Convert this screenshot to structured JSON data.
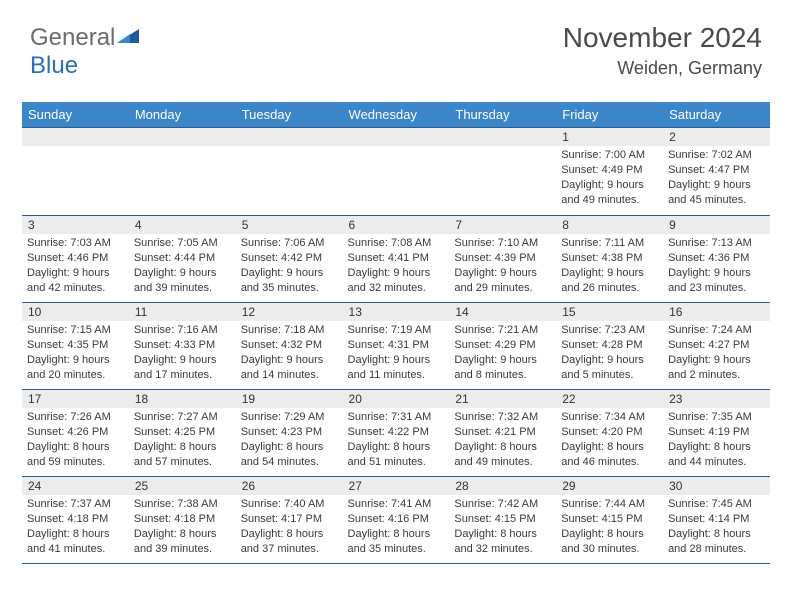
{
  "logo": {
    "part1": "General",
    "part2": "Blue"
  },
  "title": "November 2024",
  "location": "Weiden, Germany",
  "colors": {
    "header_bg": "#3a86c8",
    "header_text": "#ffffff",
    "border": "#2c5b8f",
    "daynum_bg": "#ececec",
    "logo_gray": "#6b6b6b",
    "logo_blue": "#2c6fb5",
    "text": "#3a3a3a"
  },
  "day_headers": [
    "Sunday",
    "Monday",
    "Tuesday",
    "Wednesday",
    "Thursday",
    "Friday",
    "Saturday"
  ],
  "weeks": [
    [
      {
        "num": "",
        "sunrise": "",
        "sunset": "",
        "daylight": ""
      },
      {
        "num": "",
        "sunrise": "",
        "sunset": "",
        "daylight": ""
      },
      {
        "num": "",
        "sunrise": "",
        "sunset": "",
        "daylight": ""
      },
      {
        "num": "",
        "sunrise": "",
        "sunset": "",
        "daylight": ""
      },
      {
        "num": "",
        "sunrise": "",
        "sunset": "",
        "daylight": ""
      },
      {
        "num": "1",
        "sunrise": "Sunrise: 7:00 AM",
        "sunset": "Sunset: 4:49 PM",
        "daylight": "Daylight: 9 hours and 49 minutes."
      },
      {
        "num": "2",
        "sunrise": "Sunrise: 7:02 AM",
        "sunset": "Sunset: 4:47 PM",
        "daylight": "Daylight: 9 hours and 45 minutes."
      }
    ],
    [
      {
        "num": "3",
        "sunrise": "Sunrise: 7:03 AM",
        "sunset": "Sunset: 4:46 PM",
        "daylight": "Daylight: 9 hours and 42 minutes."
      },
      {
        "num": "4",
        "sunrise": "Sunrise: 7:05 AM",
        "sunset": "Sunset: 4:44 PM",
        "daylight": "Daylight: 9 hours and 39 minutes."
      },
      {
        "num": "5",
        "sunrise": "Sunrise: 7:06 AM",
        "sunset": "Sunset: 4:42 PM",
        "daylight": "Daylight: 9 hours and 35 minutes."
      },
      {
        "num": "6",
        "sunrise": "Sunrise: 7:08 AM",
        "sunset": "Sunset: 4:41 PM",
        "daylight": "Daylight: 9 hours and 32 minutes."
      },
      {
        "num": "7",
        "sunrise": "Sunrise: 7:10 AM",
        "sunset": "Sunset: 4:39 PM",
        "daylight": "Daylight: 9 hours and 29 minutes."
      },
      {
        "num": "8",
        "sunrise": "Sunrise: 7:11 AM",
        "sunset": "Sunset: 4:38 PM",
        "daylight": "Daylight: 9 hours and 26 minutes."
      },
      {
        "num": "9",
        "sunrise": "Sunrise: 7:13 AM",
        "sunset": "Sunset: 4:36 PM",
        "daylight": "Daylight: 9 hours and 23 minutes."
      }
    ],
    [
      {
        "num": "10",
        "sunrise": "Sunrise: 7:15 AM",
        "sunset": "Sunset: 4:35 PM",
        "daylight": "Daylight: 9 hours and 20 minutes."
      },
      {
        "num": "11",
        "sunrise": "Sunrise: 7:16 AM",
        "sunset": "Sunset: 4:33 PM",
        "daylight": "Daylight: 9 hours and 17 minutes."
      },
      {
        "num": "12",
        "sunrise": "Sunrise: 7:18 AM",
        "sunset": "Sunset: 4:32 PM",
        "daylight": "Daylight: 9 hours and 14 minutes."
      },
      {
        "num": "13",
        "sunrise": "Sunrise: 7:19 AM",
        "sunset": "Sunset: 4:31 PM",
        "daylight": "Daylight: 9 hours and 11 minutes."
      },
      {
        "num": "14",
        "sunrise": "Sunrise: 7:21 AM",
        "sunset": "Sunset: 4:29 PM",
        "daylight": "Daylight: 9 hours and 8 minutes."
      },
      {
        "num": "15",
        "sunrise": "Sunrise: 7:23 AM",
        "sunset": "Sunset: 4:28 PM",
        "daylight": "Daylight: 9 hours and 5 minutes."
      },
      {
        "num": "16",
        "sunrise": "Sunrise: 7:24 AM",
        "sunset": "Sunset: 4:27 PM",
        "daylight": "Daylight: 9 hours and 2 minutes."
      }
    ],
    [
      {
        "num": "17",
        "sunrise": "Sunrise: 7:26 AM",
        "sunset": "Sunset: 4:26 PM",
        "daylight": "Daylight: 8 hours and 59 minutes."
      },
      {
        "num": "18",
        "sunrise": "Sunrise: 7:27 AM",
        "sunset": "Sunset: 4:25 PM",
        "daylight": "Daylight: 8 hours and 57 minutes."
      },
      {
        "num": "19",
        "sunrise": "Sunrise: 7:29 AM",
        "sunset": "Sunset: 4:23 PM",
        "daylight": "Daylight: 8 hours and 54 minutes."
      },
      {
        "num": "20",
        "sunrise": "Sunrise: 7:31 AM",
        "sunset": "Sunset: 4:22 PM",
        "daylight": "Daylight: 8 hours and 51 minutes."
      },
      {
        "num": "21",
        "sunrise": "Sunrise: 7:32 AM",
        "sunset": "Sunset: 4:21 PM",
        "daylight": "Daylight: 8 hours and 49 minutes."
      },
      {
        "num": "22",
        "sunrise": "Sunrise: 7:34 AM",
        "sunset": "Sunset: 4:20 PM",
        "daylight": "Daylight: 8 hours and 46 minutes."
      },
      {
        "num": "23",
        "sunrise": "Sunrise: 7:35 AM",
        "sunset": "Sunset: 4:19 PM",
        "daylight": "Daylight: 8 hours and 44 minutes."
      }
    ],
    [
      {
        "num": "24",
        "sunrise": "Sunrise: 7:37 AM",
        "sunset": "Sunset: 4:18 PM",
        "daylight": "Daylight: 8 hours and 41 minutes."
      },
      {
        "num": "25",
        "sunrise": "Sunrise: 7:38 AM",
        "sunset": "Sunset: 4:18 PM",
        "daylight": "Daylight: 8 hours and 39 minutes."
      },
      {
        "num": "26",
        "sunrise": "Sunrise: 7:40 AM",
        "sunset": "Sunset: 4:17 PM",
        "daylight": "Daylight: 8 hours and 37 minutes."
      },
      {
        "num": "27",
        "sunrise": "Sunrise: 7:41 AM",
        "sunset": "Sunset: 4:16 PM",
        "daylight": "Daylight: 8 hours and 35 minutes."
      },
      {
        "num": "28",
        "sunrise": "Sunrise: 7:42 AM",
        "sunset": "Sunset: 4:15 PM",
        "daylight": "Daylight: 8 hours and 32 minutes."
      },
      {
        "num": "29",
        "sunrise": "Sunrise: 7:44 AM",
        "sunset": "Sunset: 4:15 PM",
        "daylight": "Daylight: 8 hours and 30 minutes."
      },
      {
        "num": "30",
        "sunrise": "Sunrise: 7:45 AM",
        "sunset": "Sunset: 4:14 PM",
        "daylight": "Daylight: 8 hours and 28 minutes."
      }
    ]
  ]
}
